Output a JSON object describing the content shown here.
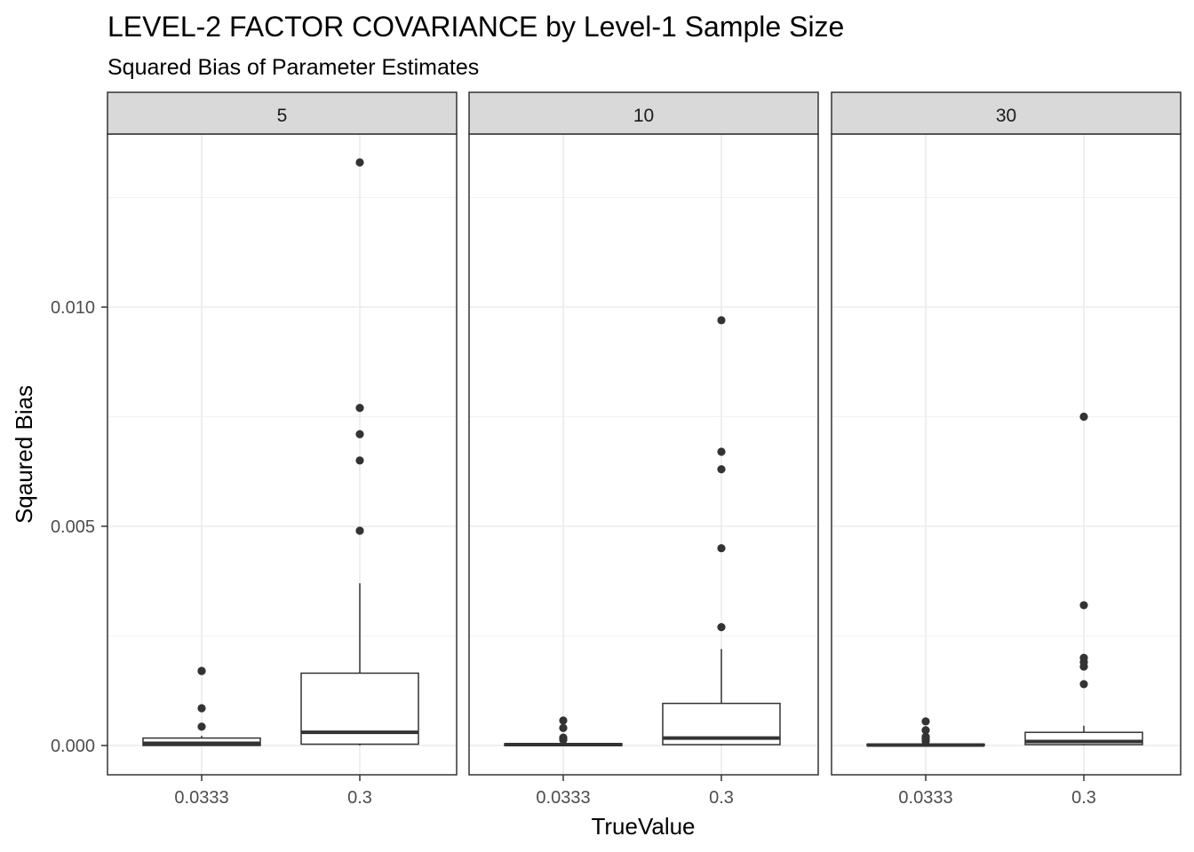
{
  "chart_data": {
    "type": "box",
    "title": "LEVEL-2 FACTOR COVARIANCE by Level-1 Sample Size",
    "subtitle": "Squared Bias of Parameter Estimates",
    "xlabel": "TrueValue",
    "ylabel": "Sqaured Bias",
    "categories": [
      "0.0333",
      "0.3"
    ],
    "ylim": [
      -0.00065,
      0.0135
    ],
    "y_ticks": [
      0.0,
      0.005,
      0.01
    ],
    "y_tick_labels": [
      "0.000",
      "0.005",
      "0.010"
    ],
    "grid": true,
    "facets": [
      {
        "label": "5",
        "boxes": [
          {
            "category": "0.0333",
            "q1": 0.0,
            "median": 5e-05,
            "q3": 0.00017,
            "whisker_low": 0.0,
            "whisker_high": 0.00022,
            "outliers": [
              0.00043,
              0.00085,
              0.0017,
              0.0017
            ]
          },
          {
            "category": "0.3",
            "q1": 3e-05,
            "median": 0.0003,
            "q3": 0.00165,
            "whisker_low": 0.0,
            "whisker_high": 0.0037,
            "outliers": [
              0.0049,
              0.0065,
              0.0071,
              0.0077,
              0.0133
            ]
          }
        ]
      },
      {
        "label": "10",
        "boxes": [
          {
            "category": "0.0333",
            "q1": 0.0,
            "median": 2e-05,
            "q3": 4e-05,
            "whisker_low": 0.0,
            "whisker_high": 8e-05,
            "outliers": [
              0.00013,
              0.00018,
              0.0004,
              0.00057
            ]
          },
          {
            "category": "0.3",
            "q1": 2e-05,
            "median": 0.00017,
            "q3": 0.00096,
            "whisker_low": 0.0,
            "whisker_high": 0.0022,
            "outliers": [
              0.0027,
              0.0045,
              0.0063,
              0.0067,
              0.0097
            ]
          }
        ]
      },
      {
        "label": "30",
        "boxes": [
          {
            "category": "0.0333",
            "q1": 0.0,
            "median": 1e-05,
            "q3": 3e-05,
            "whisker_low": 0.0,
            "whisker_high": 6e-05,
            "outliers": [
              0.0001,
              0.00015,
              0.0002,
              0.00035,
              0.00055
            ]
          },
          {
            "category": "0.3",
            "q1": 2e-05,
            "median": 9e-05,
            "q3": 0.0003,
            "whisker_low": 0.0,
            "whisker_high": 0.00045,
            "outliers": [
              0.0014,
              0.0018,
              0.0019,
              0.002,
              0.0032,
              0.0075
            ]
          }
        ]
      }
    ]
  }
}
